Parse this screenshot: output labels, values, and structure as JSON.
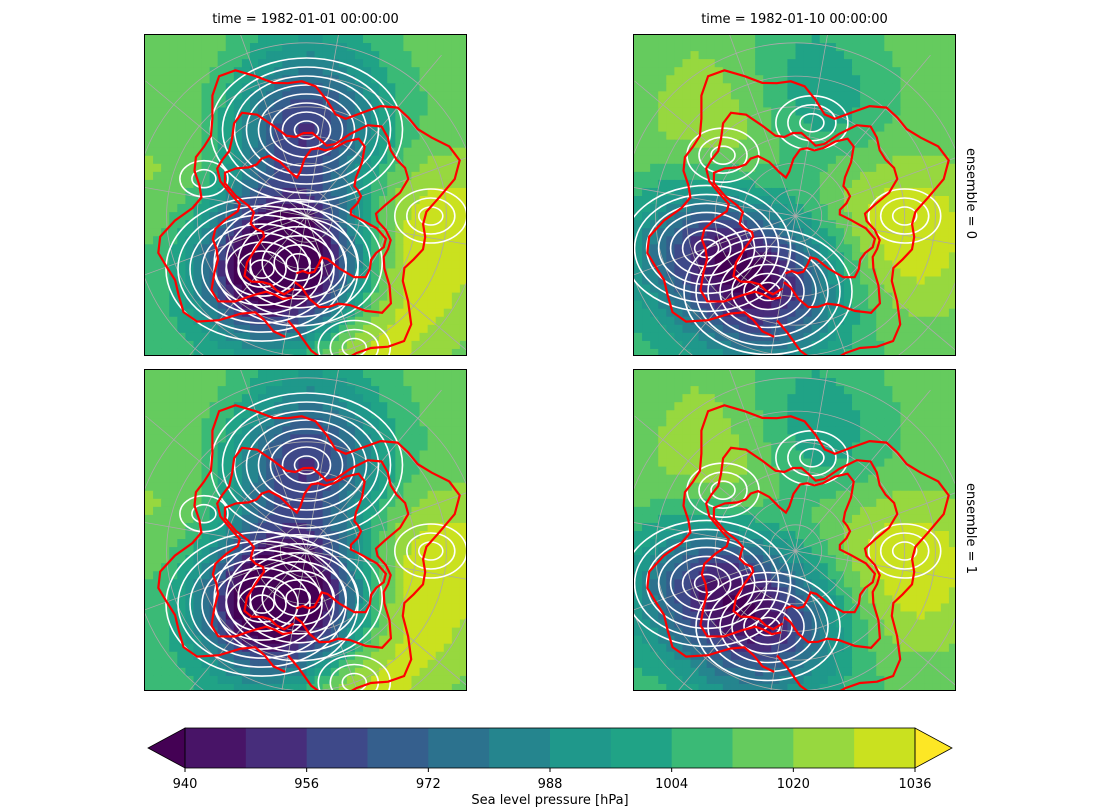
{
  "chart_data": {
    "type": "heatmap",
    "projection": "north-polar-stereographic",
    "facet_columns": [
      {
        "label": "time = 1982-01-01 00:00:00"
      },
      {
        "label": "time = 1982-01-10 00:00:00"
      }
    ],
    "facet_rows": [
      {
        "label": "ensemble = 0"
      },
      {
        "label": "ensemble = 1"
      }
    ],
    "panels": [
      {
        "time": "1982-01-01 00:00:00",
        "ensemble": 0,
        "lows": [
          {
            "lon": 190,
            "lat": 58,
            "value": 952
          },
          {
            "lon": 330,
            "lat": 64,
            "value": 950
          },
          {
            "lon": 0,
            "lat": 72,
            "value": 956
          }
        ],
        "highs": [
          {
            "lon": 100,
            "lat": 45,
            "value": 1036
          },
          {
            "lon": 260,
            "lat": 50,
            "value": 1028
          },
          {
            "lon": 30,
            "lat": 40,
            "value": 1036
          }
        ]
      },
      {
        "time": "1982-01-10 00:00:00",
        "ensemble": 0,
        "lows": [
          {
            "lon": 180,
            "lat": 55,
            "value": 992
          },
          {
            "lon": 300,
            "lat": 55,
            "value": 956
          },
          {
            "lon": 350,
            "lat": 60,
            "value": 960
          }
        ],
        "highs": [
          {
            "lon": 100,
            "lat": 50,
            "value": 1036
          },
          {
            "lon": 240,
            "lat": 55,
            "value": 1036
          }
        ]
      },
      {
        "time": "1982-01-01 00:00:00",
        "ensemble": 1,
        "lows": [
          {
            "lon": 190,
            "lat": 58,
            "value": 952
          },
          {
            "lon": 330,
            "lat": 64,
            "value": 950
          },
          {
            "lon": 0,
            "lat": 72,
            "value": 956
          }
        ],
        "highs": [
          {
            "lon": 100,
            "lat": 45,
            "value": 1036
          },
          {
            "lon": 260,
            "lat": 50,
            "value": 1028
          },
          {
            "lon": 30,
            "lat": 40,
            "value": 1036
          }
        ]
      },
      {
        "time": "1982-01-10 00:00:00",
        "ensemble": 1,
        "lows": [
          {
            "lon": 180,
            "lat": 55,
            "value": 992
          },
          {
            "lon": 300,
            "lat": 55,
            "value": 956
          },
          {
            "lon": 350,
            "lat": 60,
            "value": 964
          }
        ],
        "highs": [
          {
            "lon": 100,
            "lat": 50,
            "value": 1036
          },
          {
            "lon": 240,
            "lat": 55,
            "value": 1036
          }
        ]
      }
    ],
    "colorbar": {
      "levels": [
        940,
        948,
        956,
        964,
        972,
        980,
        988,
        996,
        1004,
        1012,
        1020,
        1028,
        1036
      ],
      "ticks": [
        "940",
        "956",
        "972",
        "988",
        "1004",
        "1020",
        "1036"
      ],
      "extend": "both",
      "orientation": "horizontal",
      "colormap": "viridis",
      "colors": [
        "#481467",
        "#472d7b",
        "#3e4989",
        "#355f8d",
        "#2c728e",
        "#25858e",
        "#1f988b",
        "#20a386",
        "#3aba76",
        "#65cb5e",
        "#97d83f",
        "#cae11f"
      ],
      "under_color": "#440154",
      "over_color": "#fde725",
      "label": "Sea level pressure [hPa]"
    },
    "overlays": {
      "contour_color": "#ffffff",
      "coastline_color": "#ff0000",
      "gridline_color": "#aaaaaa"
    }
  }
}
